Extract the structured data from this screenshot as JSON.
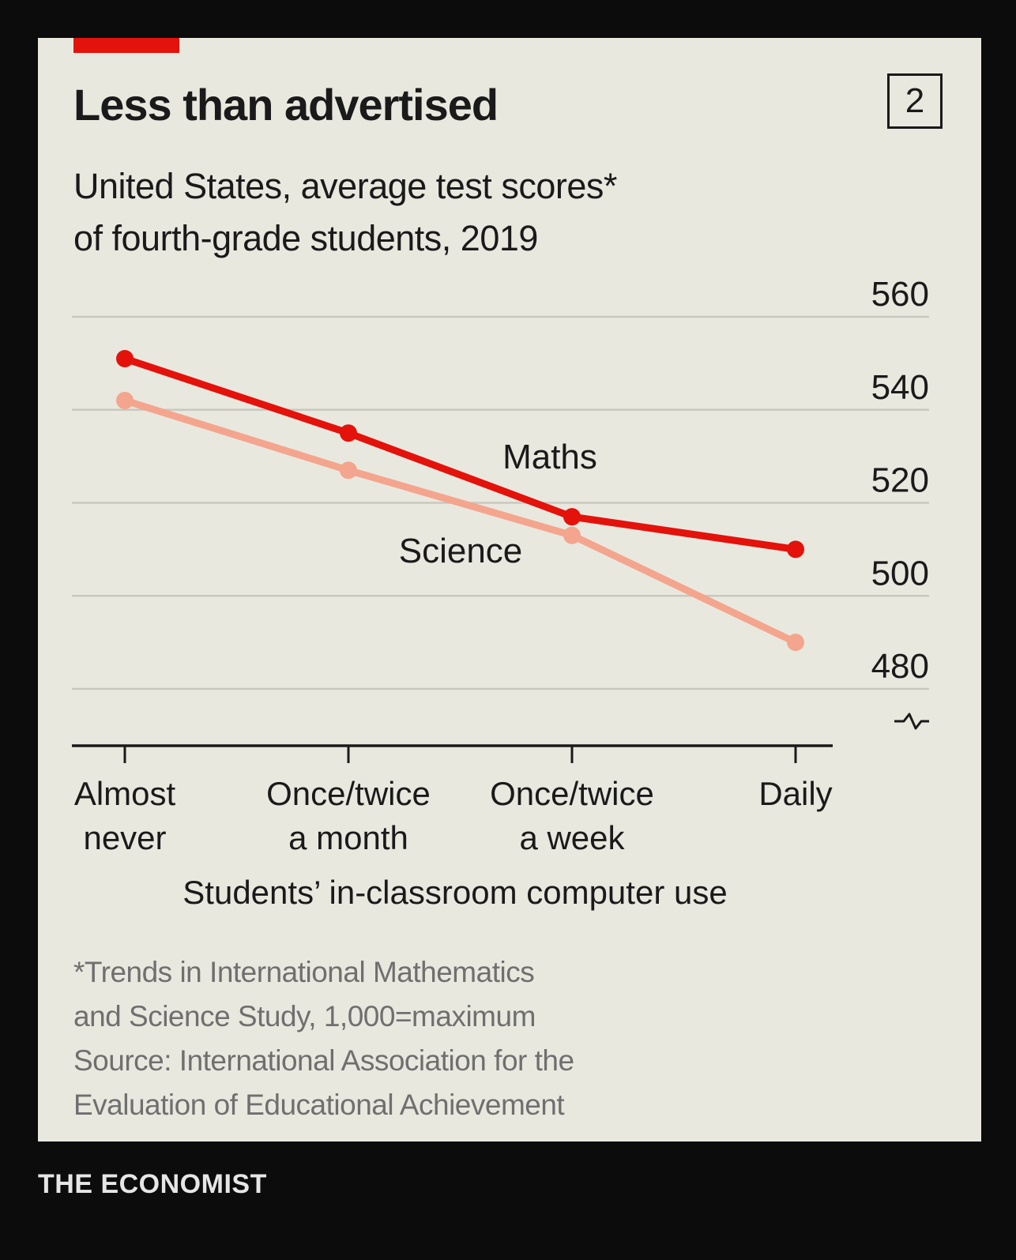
{
  "card": {
    "title": "Less than advertised",
    "chart_number": "2",
    "subtitle_lines": [
      "United States, average test scores*",
      "of fourth-grade students, 2019"
    ],
    "footnote_lines": [
      "*Trends in International Mathematics",
      "and Science Study, 1,000=maximum",
      "Source: International Association for the",
      "Evaluation of Educational Achievement"
    ]
  },
  "brand": "THE ECONOMIST",
  "colors": {
    "accent": "#e3120b",
    "maths": "#e3120b",
    "science": "#f4a58e",
    "background": "#e9e8df",
    "frame": "#0c0c0c"
  },
  "chart_data": {
    "type": "line",
    "title": "Less than advertised",
    "subtitle": "United States, average test scores* of fourth-grade students, 2019",
    "xlabel": "Students’ in-classroom computer use",
    "ylabel": "",
    "categories": [
      [
        "Almost",
        "never"
      ],
      [
        "Once/twice",
        "a month"
      ],
      [
        "Once/twice",
        "a week"
      ],
      [
        "Daily"
      ]
    ],
    "series": [
      {
        "name": "Maths",
        "values": [
          551,
          535,
          517,
          510
        ]
      },
      {
        "name": "Science",
        "values": [
          542,
          527,
          513,
          490
        ]
      }
    ],
    "yticks": [
      480,
      500,
      520,
      540,
      560
    ],
    "ylim": [
      480,
      560
    ],
    "y_axis_side": "right",
    "y_axis_broken": true,
    "grid": true
  }
}
